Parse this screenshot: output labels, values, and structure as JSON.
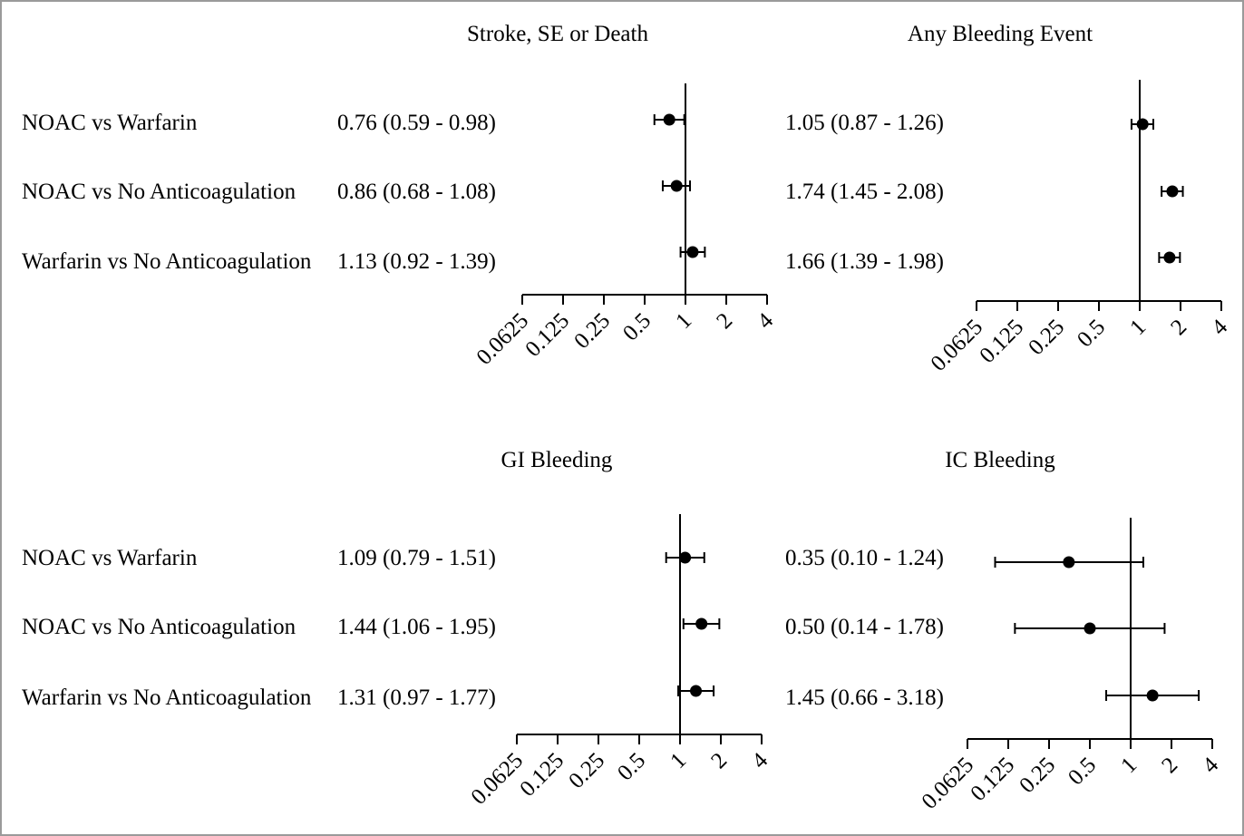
{
  "chart_data": [
    {
      "type": "forest",
      "title": "Stroke, SE or Death",
      "xscale": "log2",
      "x_ticks": [
        "0.0625",
        "0.125",
        "0.25",
        "0.5",
        "1",
        "2",
        "4"
      ],
      "reference_line": 1,
      "rows": [
        {
          "label": "NOAC vs Warfarin",
          "text": "0.76 (0.59 - 0.98)",
          "hr": 0.76,
          "low": 0.59,
          "high": 0.98
        },
        {
          "label": "NOAC vs No Anticoagulation",
          "text": "0.86 (0.68 - 1.08)",
          "hr": 0.86,
          "low": 0.68,
          "high": 1.08
        },
        {
          "label": "Warfarin vs No Anticoagulation",
          "text": "1.13 (0.92 - 1.39)",
          "hr": 1.13,
          "low": 0.92,
          "high": 1.39
        }
      ]
    },
    {
      "type": "forest",
      "title": "Any Bleeding Event",
      "xscale": "log2",
      "x_ticks": [
        "0.0625",
        "0.125",
        "0.25",
        "0.5",
        "1",
        "2",
        "4"
      ],
      "reference_line": 1,
      "rows": [
        {
          "label": "",
          "text": "1.05 (0.87 - 1.26)",
          "hr": 1.05,
          "low": 0.87,
          "high": 1.26
        },
        {
          "label": "",
          "text": "1.74 (1.45 - 2.08)",
          "hr": 1.74,
          "low": 1.45,
          "high": 2.08
        },
        {
          "label": "",
          "text": "1.66 (1.39 - 1.98)",
          "hr": 1.66,
          "low": 1.39,
          "high": 1.98
        }
      ]
    },
    {
      "type": "forest",
      "title": "GI Bleeding",
      "xscale": "log2",
      "x_ticks": [
        "0.0625",
        "0.125",
        "0.25",
        "0.5",
        "1",
        "2",
        "4"
      ],
      "reference_line": 1,
      "rows": [
        {
          "label": "NOAC vs Warfarin",
          "text": "1.09 (0.79 - 1.51)",
          "hr": 1.09,
          "low": 0.79,
          "high": 1.51
        },
        {
          "label": "NOAC vs No Anticoagulation",
          "text": "1.44 (1.06 - 1.95)",
          "hr": 1.44,
          "low": 1.06,
          "high": 1.95
        },
        {
          "label": "Warfarin vs No Anticoagulation",
          "text": "1.31 (0.97 - 1.77)",
          "hr": 1.31,
          "low": 0.97,
          "high": 1.77
        }
      ]
    },
    {
      "type": "forest",
      "title": "IC Bleeding",
      "xscale": "log2",
      "x_ticks": [
        "0.0625",
        "0.125",
        "0.25",
        "0.5",
        "1",
        "2",
        "4"
      ],
      "reference_line": 1,
      "rows": [
        {
          "label": "",
          "text": "0.35 (0.10 - 1.24)",
          "hr": 0.35,
          "low": 0.1,
          "high": 1.24
        },
        {
          "label": "",
          "text": "0.50 (0.14 - 1.78)",
          "hr": 0.5,
          "low": 0.14,
          "high": 1.78
        },
        {
          "label": "",
          "text": "1.45 (0.66 - 3.18)",
          "hr": 1.45,
          "low": 0.66,
          "high": 3.18
        }
      ]
    }
  ]
}
